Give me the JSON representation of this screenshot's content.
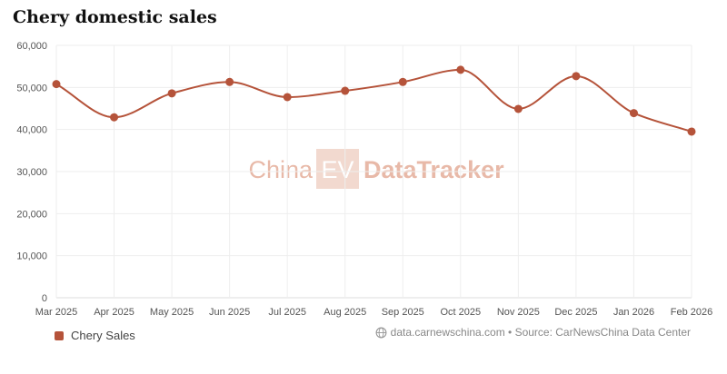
{
  "title": "Chery domestic sales",
  "watermark": {
    "left": "China",
    "badge": "EV",
    "right": "DataTracker"
  },
  "legend": {
    "label": "Chery Sales"
  },
  "source": {
    "text": "data.carnewschina.com • Source: CarNewsChina Data Center",
    "icon": "globe-icon"
  },
  "colors": {
    "series": "#b5533a",
    "grid": "#eeeeee",
    "axis": "#dddddd",
    "watermark": "#e8b9a8"
  },
  "chart_data": {
    "type": "line",
    "title": "Chery domestic sales",
    "categories": [
      "Mar 2025",
      "Apr 2025",
      "May 2025",
      "Jun 2025",
      "Jul 2025",
      "Aug 2025",
      "Sep 2025",
      "Oct 2025",
      "Nov 2025",
      "Dec 2025",
      "Jan 2026",
      "Feb 2026"
    ],
    "series": [
      {
        "name": "Chery Sales",
        "values": [
          50800,
          42900,
          48600,
          51300,
          47700,
          49200,
          51300,
          54200,
          44900,
          52700,
          43900,
          39500
        ]
      }
    ],
    "ylim": [
      0,
      60000
    ],
    "yticks": [
      0,
      10000,
      20000,
      30000,
      40000,
      50000,
      60000
    ],
    "ytick_labels": [
      "0",
      "10,000",
      "20,000",
      "30,000",
      "40,000",
      "50,000",
      "60,000"
    ],
    "grid": true,
    "legend_position": "bottom-left"
  }
}
